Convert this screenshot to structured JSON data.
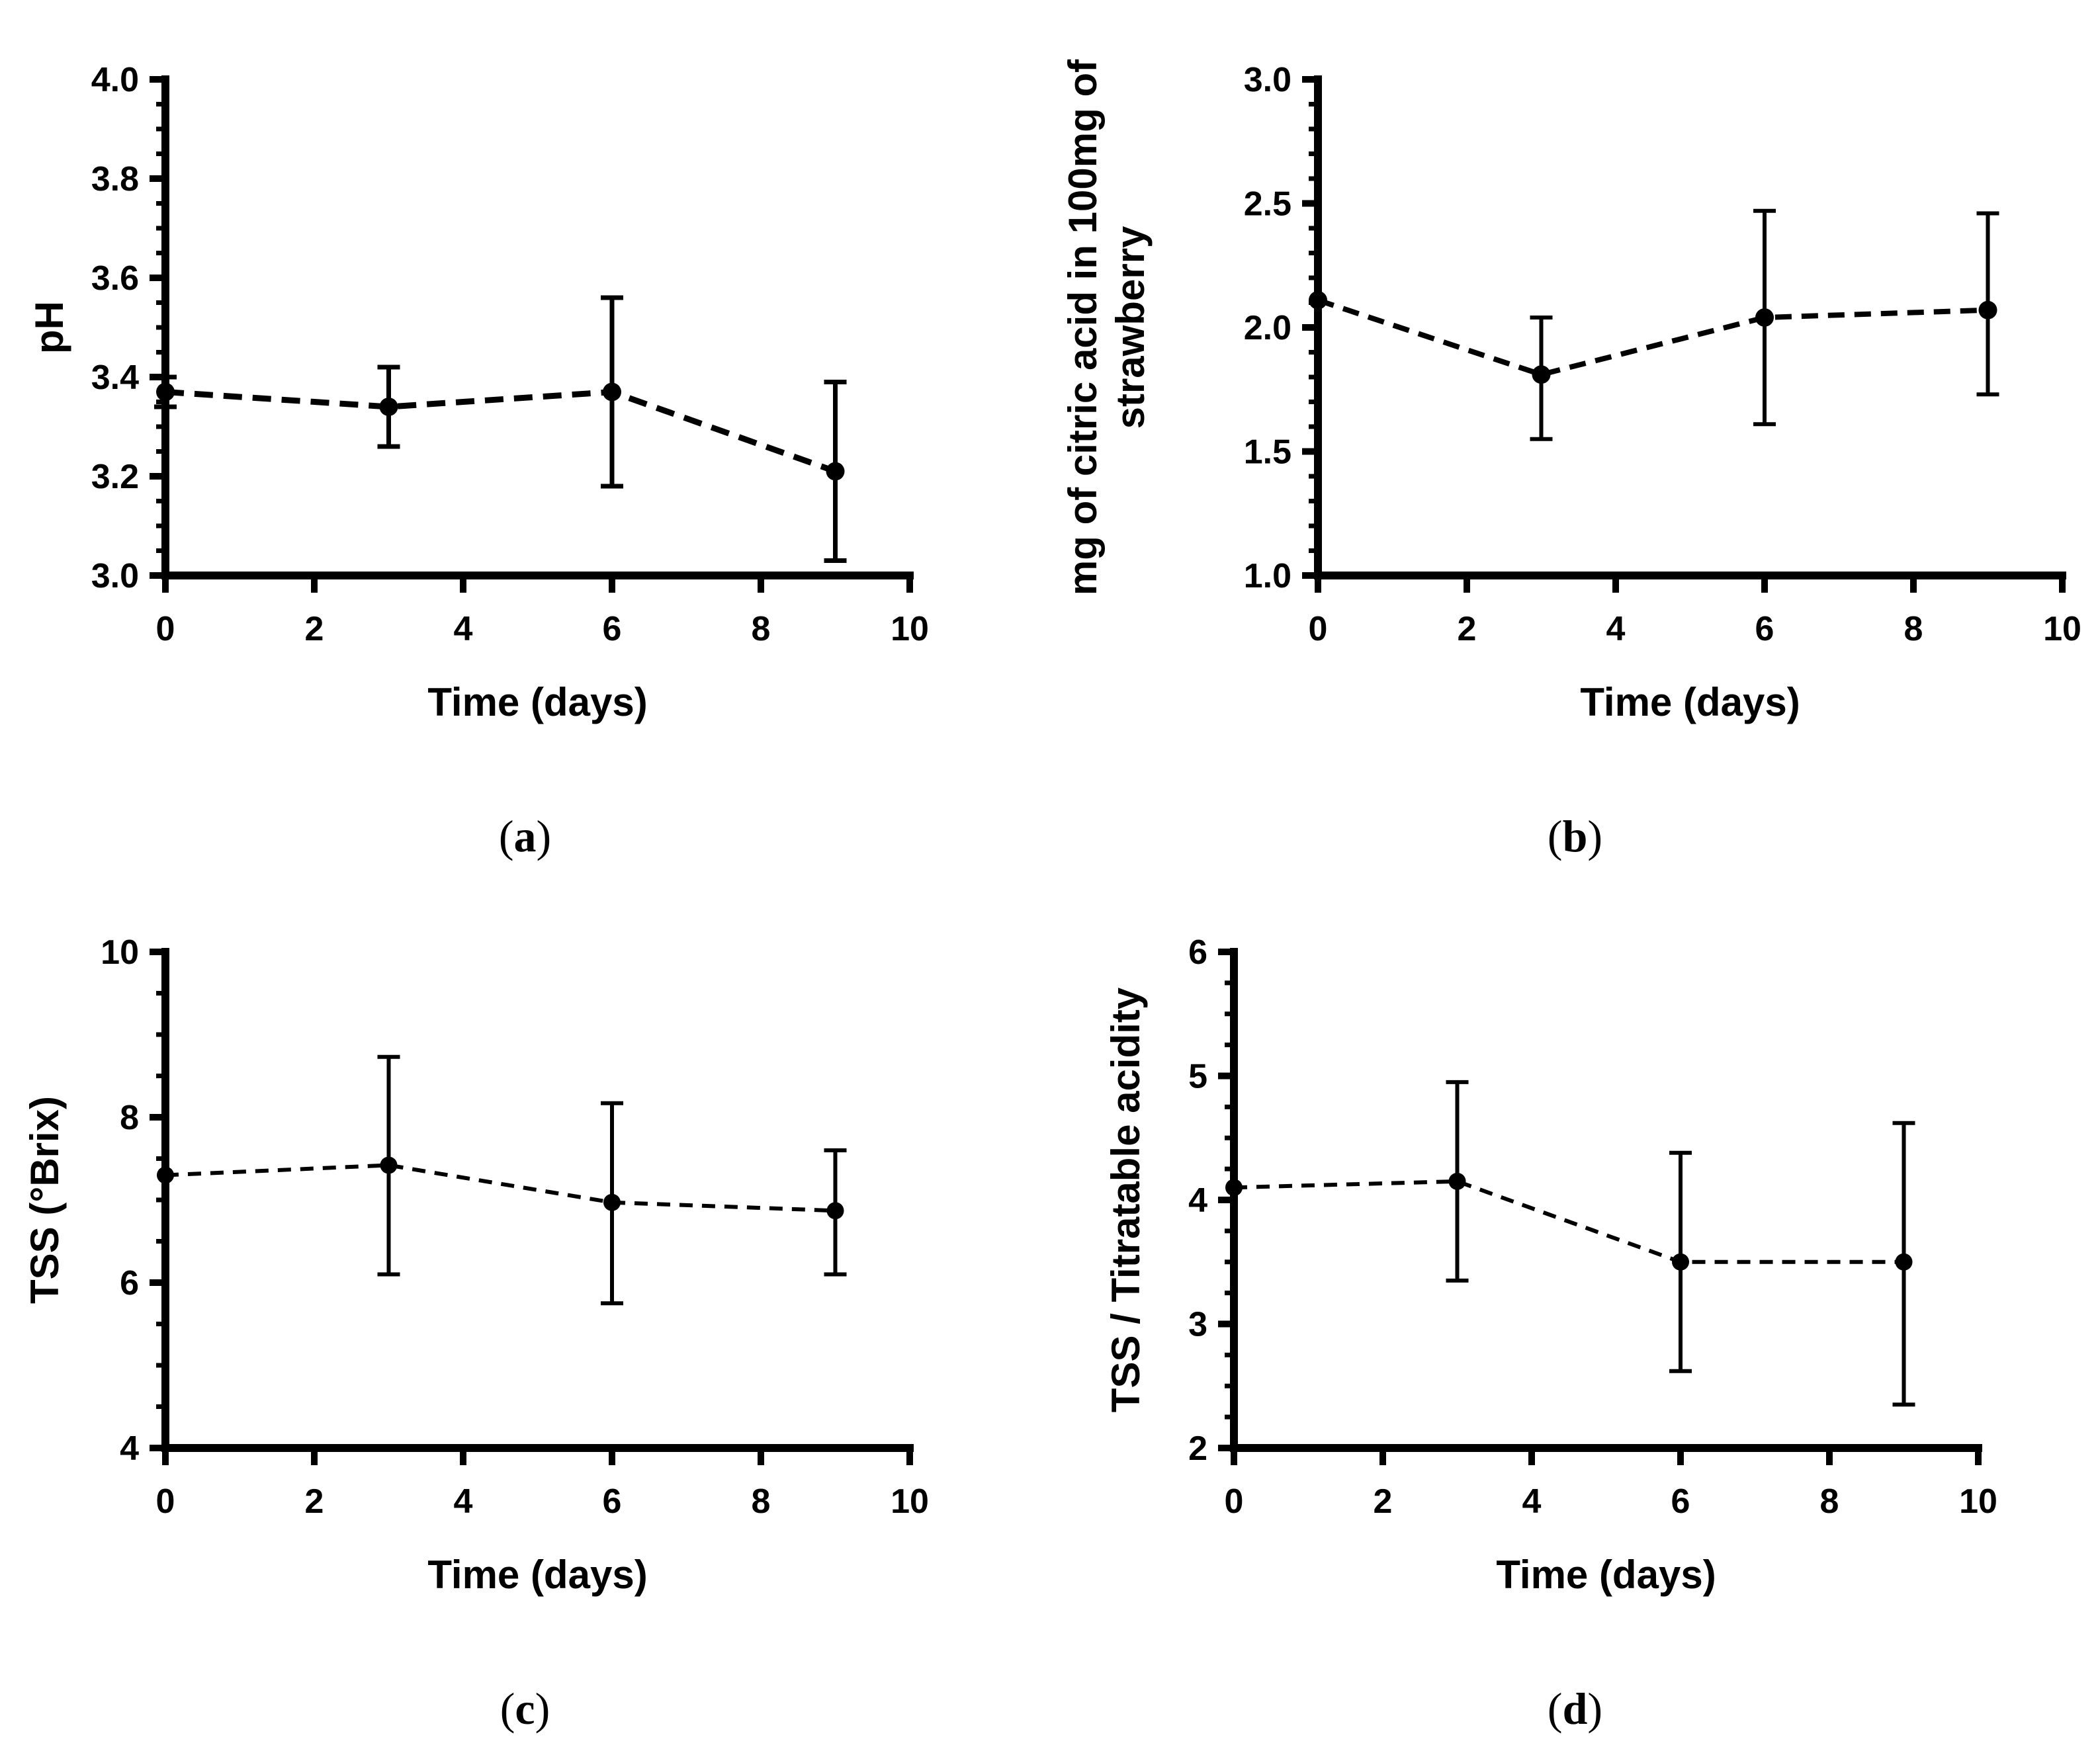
{
  "figure": {
    "background": "#ffffff",
    "ink": "#000000",
    "captions": [
      {
        "open": "(",
        "letter": "a",
        "close": ")"
      },
      {
        "open": "(",
        "letter": "b",
        "close": ")"
      },
      {
        "open": "(",
        "letter": "c",
        "close": ")"
      },
      {
        "open": "(",
        "letter": "d",
        "close": ")"
      }
    ]
  },
  "chart_data": [
    {
      "type": "line",
      "panel": "a",
      "title": "",
      "xlabel": "Time (days)",
      "ylabel_lines": [
        "pH"
      ],
      "x": [
        0,
        3,
        6,
        9
      ],
      "y": [
        3.37,
        3.34,
        3.37,
        3.21
      ],
      "err_low": [
        3.34,
        3.26,
        3.18,
        3.03
      ],
      "err_high": [
        3.4,
        3.42,
        3.56,
        3.39
      ],
      "xlim": [
        0,
        10
      ],
      "ylim": [
        3.0,
        4.0
      ],
      "xticks": [
        0,
        2,
        4,
        6,
        8,
        10
      ],
      "xtick_labels": [
        "0",
        "2",
        "4",
        "6",
        "8",
        "10"
      ],
      "yticks": [
        3.0,
        3.2,
        3.4,
        3.6,
        3.8,
        4.0
      ],
      "ytick_labels": [
        "3.0",
        "3.2",
        "3.4",
        "3.6",
        "3.8",
        "4.0"
      ],
      "y_minor_step": 0.05,
      "line_style": "dashed",
      "marker": "filled-circle",
      "error_bars": true,
      "grid": false,
      "legend": "none"
    },
    {
      "type": "line",
      "panel": "b",
      "title": "",
      "xlabel": "Time (days)",
      "ylabel_lines": [
        "mg of citric acid in 100mg of",
        "strawberry"
      ],
      "x": [
        0,
        3,
        6,
        9
      ],
      "y": [
        2.11,
        1.81,
        2.04,
        2.07
      ],
      "err_low": [
        2.11,
        1.55,
        1.61,
        1.73
      ],
      "err_high": [
        2.11,
        2.04,
        2.47,
        2.46
      ],
      "xlim": [
        0,
        10
      ],
      "ylim": [
        1.0,
        3.0
      ],
      "xticks": [
        0,
        2,
        4,
        6,
        8,
        10
      ],
      "xtick_labels": [
        "0",
        "2",
        "4",
        "6",
        "8",
        "10"
      ],
      "yticks": [
        1.0,
        1.5,
        2.0,
        2.5,
        3.0
      ],
      "ytick_labels": [
        "1.0",
        "1.5",
        "2.0",
        "2.5",
        "3.0"
      ],
      "y_minor_step": 0.1,
      "line_style": "dashed",
      "marker": "filled-circle",
      "error_bars": true,
      "grid": false,
      "legend": "none"
    },
    {
      "type": "line",
      "panel": "c",
      "title": "",
      "xlabel": "Time (days)",
      "ylabel_lines": [
        "TSS (°Brix)"
      ],
      "x": [
        0,
        3,
        6,
        9
      ],
      "y": [
        7.3,
        7.42,
        6.97,
        6.87
      ],
      "err_low": [
        7.3,
        6.1,
        5.75,
        6.1
      ],
      "err_high": [
        7.3,
        8.73,
        8.17,
        7.6
      ],
      "xlim": [
        0,
        10
      ],
      "ylim": [
        4,
        10
      ],
      "xticks": [
        0,
        2,
        4,
        6,
        8,
        10
      ],
      "xtick_labels": [
        "0",
        "2",
        "4",
        "6",
        "8",
        "10"
      ],
      "yticks": [
        4,
        6,
        8,
        10
      ],
      "ytick_labels": [
        "4",
        "6",
        "8",
        "10"
      ],
      "y_minor_step": 0.5,
      "line_style": "dashed",
      "marker": "filled-circle",
      "error_bars": true,
      "grid": false,
      "legend": "none"
    },
    {
      "type": "line",
      "panel": "d",
      "title": "",
      "xlabel": "Time (days)",
      "ylabel_lines": [
        "TSS / Titratable acidity"
      ],
      "x": [
        0,
        3,
        6,
        9
      ],
      "y": [
        4.1,
        4.15,
        3.5,
        3.5
      ],
      "err_low": [
        4.1,
        3.35,
        2.62,
        2.35
      ],
      "err_high": [
        4.1,
        4.95,
        4.38,
        4.62
      ],
      "xlim": [
        0,
        10
      ],
      "ylim": [
        2,
        6
      ],
      "xticks": [
        0,
        2,
        4,
        6,
        8,
        10
      ],
      "xtick_labels": [
        "0",
        "2",
        "4",
        "6",
        "8",
        "10"
      ],
      "yticks": [
        2,
        3,
        4,
        5,
        6
      ],
      "ytick_labels": [
        "2",
        "3",
        "4",
        "5",
        "6"
      ],
      "y_minor_step": 0.25,
      "line_style": "dashed",
      "marker": "filled-circle",
      "error_bars": true,
      "grid": false,
      "legend": "none"
    }
  ]
}
